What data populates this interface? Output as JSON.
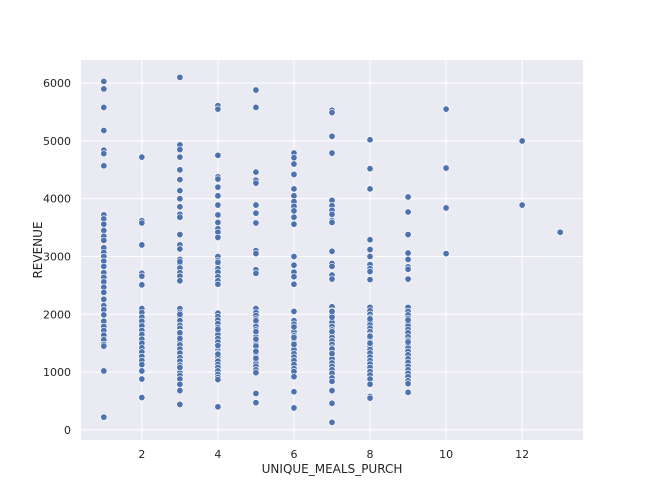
{
  "chart_data": {
    "type": "scatter",
    "title": "",
    "xlabel": "UNIQUE_MEALS_PURCH",
    "ylabel": "REVENUE",
    "xlim": [
      0.4,
      13.6
    ],
    "ylim": [
      -175,
      6400
    ],
    "xticks": [
      2,
      4,
      6,
      8,
      10,
      12
    ],
    "yticks": [
      0,
      1000,
      2000,
      3000,
      4000,
      5000,
      6000
    ],
    "grid": true,
    "style": "seaborn-darkgrid",
    "colors": {
      "background": "#eaeaf2",
      "grid": "#ffffff",
      "marker": "#4c72b0",
      "marker_edge": "#ffffff",
      "text": "#262626"
    },
    "x": [
      1,
      1,
      1,
      1,
      1,
      1,
      1,
      1,
      1,
      1,
      1,
      1,
      1,
      1,
      1,
      1,
      1,
      1,
      1,
      1,
      1,
      1,
      1,
      1,
      1,
      1,
      1,
      1,
      1,
      1,
      1,
      1,
      1,
      1,
      1,
      1,
      2,
      2,
      2,
      2,
      2,
      2,
      2,
      2,
      2,
      2,
      2,
      2,
      2,
      2,
      2,
      2,
      2,
      2,
      2,
      2,
      2,
      2,
      2,
      2,
      3,
      3,
      3,
      3,
      3,
      3,
      3,
      3,
      3,
      3,
      3,
      3,
      3,
      3,
      3,
      3,
      3,
      3,
      3,
      3,
      3,
      3,
      3,
      3,
      3,
      3,
      3,
      3,
      3,
      3,
      3,
      3,
      3,
      3,
      3,
      3,
      3,
      3,
      3,
      3,
      3,
      3,
      3,
      3,
      3,
      3,
      3,
      4,
      4,
      4,
      4,
      4,
      4,
      4,
      4,
      4,
      4,
      4,
      4,
      4,
      4,
      4,
      4,
      4,
      4,
      4,
      4,
      4,
      4,
      4,
      4,
      4,
      4,
      4,
      4,
      4,
      4,
      4,
      4,
      4,
      4,
      4,
      4,
      4,
      4,
      4,
      4,
      4,
      4,
      4,
      4,
      4,
      4,
      5,
      5,
      5,
      5,
      5,
      5,
      5,
      5,
      5,
      5,
      5,
      5,
      5,
      5,
      5,
      5,
      5,
      5,
      5,
      5,
      5,
      5,
      5,
      5,
      5,
      5,
      5,
      5,
      5,
      5,
      5,
      5,
      5,
      5,
      5,
      5,
      5,
      5,
      5,
      5,
      6,
      6,
      6,
      6,
      6,
      6,
      6,
      6,
      6,
      6,
      6,
      6,
      6,
      6,
      6,
      6,
      6,
      6,
      6,
      6,
      6,
      6,
      6,
      6,
      6,
      6,
      6,
      6,
      6,
      6,
      6,
      6,
      6,
      6,
      6,
      6,
      6,
      6,
      7,
      7,
      7,
      7,
      7,
      7,
      7,
      7,
      7,
      7,
      7,
      7,
      7,
      7,
      7,
      7,
      7,
      7,
      7,
      7,
      7,
      7,
      7,
      7,
      7,
      7,
      7,
      7,
      7,
      7,
      7,
      7,
      7,
      7,
      7,
      7,
      7,
      7,
      7,
      7,
      7,
      7,
      7,
      7,
      8,
      8,
      8,
      8,
      8,
      8,
      8,
      8,
      8,
      8,
      8,
      8,
      8,
      8,
      8,
      8,
      8,
      8,
      8,
      8,
      8,
      8,
      8,
      8,
      8,
      8,
      8,
      8,
      8,
      8,
      8,
      8,
      8,
      8,
      8,
      8,
      8,
      9,
      9,
      9,
      9,
      9,
      9,
      9,
      9,
      9,
      9,
      9,
      9,
      9,
      9,
      9,
      9,
      9,
      9,
      9,
      9,
      9,
      9,
      9,
      9,
      9,
      9,
      9,
      9,
      9,
      9,
      9,
      9,
      9,
      10,
      10,
      10,
      10,
      12,
      12,
      13
    ],
    "y": [
      6030,
      5900,
      5580,
      5180,
      4840,
      4780,
      4570,
      3720,
      3650,
      3560,
      3450,
      3350,
      3280,
      3150,
      3070,
      3000,
      2920,
      2830,
      2720,
      2640,
      2560,
      2470,
      2380,
      2260,
      2150,
      2080,
      1990,
      1880,
      1790,
      1720,
      1640,
      1560,
      1480,
      1450,
      1020,
      220,
      4720,
      3620,
      3580,
      3200,
      2710,
      2660,
      2510,
      2100,
      2030,
      1950,
      1880,
      1800,
      1720,
      1650,
      1570,
      1500,
      1420,
      1350,
      1270,
      1200,
      1130,
      880,
      560,
      1020,
      6100,
      4930,
      4850,
      4720,
      4500,
      4330,
      4140,
      4000,
      3860,
      3730,
      3680,
      3380,
      3200,
      3130,
      2950,
      2880,
      2800,
      2720,
      2660,
      2580,
      2100,
      2030,
      1960,
      1890,
      1810,
      1760,
      1690,
      1610,
      1540,
      1470,
      1400,
      1330,
      1250,
      1190,
      1120,
      1050,
      990,
      940,
      880,
      790,
      680,
      440,
      1680,
      2000,
      1580,
      1080,
      2910,
      5610,
      5550,
      4750,
      4380,
      4340,
      4200,
      4050,
      3890,
      3720,
      3590,
      3480,
      3420,
      3330,
      3000,
      2930,
      2870,
      2790,
      2730,
      2650,
      2580,
      2520,
      2020,
      1960,
      1900,
      1840,
      1770,
      1700,
      1650,
      1580,
      1520,
      1450,
      1380,
      1330,
      1260,
      1190,
      1130,
      1080,
      1020,
      960,
      910,
      870,
      400,
      2900,
      1740,
      1310,
      1460,
      5880,
      5580,
      4460,
      4320,
      4270,
      3890,
      3750,
      3580,
      3100,
      3050,
      2770,
      2710,
      2100,
      2030,
      1980,
      1920,
      1860,
      1790,
      1730,
      1670,
      1610,
      1540,
      1480,
      1420,
      1370,
      1310,
      1260,
      1200,
      1150,
      1100,
      1040,
      990,
      630,
      470,
      1890,
      1450,
      1700,
      1570,
      1360,
      1240,
      4790,
      4710,
      4600,
      4420,
      4170,
      4050,
      3950,
      3870,
      3790,
      3680,
      3560,
      3000,
      2850,
      2730,
      2650,
      2520,
      2050,
      1890,
      1830,
      1760,
      1700,
      1630,
      1570,
      1510,
      1450,
      1390,
      1320,
      1260,
      1200,
      1130,
      1060,
      1010,
      920,
      660,
      380,
      1600,
      1480,
      1780,
      5530,
      5490,
      5080,
      4790,
      3970,
      3880,
      3800,
      3730,
      3620,
      3590,
      3090,
      2880,
      2830,
      2680,
      2610,
      2130,
      2060,
      1990,
      1920,
      1860,
      1790,
      1730,
      1660,
      1600,
      1540,
      1480,
      1420,
      1360,
      1290,
      1230,
      1160,
      1100,
      1040,
      980,
      900,
      840,
      680,
      460,
      130,
      1950,
      1400,
      1320,
      2050,
      1700,
      5020,
      4520,
      4170,
      3290,
      3120,
      3000,
      2860,
      2790,
      2740,
      2600,
      2120,
      2060,
      2000,
      1940,
      1880,
      1820,
      1760,
      1700,
      1640,
      1580,
      1520,
      1450,
      1390,
      1330,
      1260,
      1200,
      1140,
      1080,
      1010,
      950,
      880,
      790,
      580,
      550,
      1500,
      1620,
      1920,
      4030,
      3770,
      3380,
      3060,
      2950,
      2820,
      2780,
      2610,
      2120,
      2050,
      1990,
      1930,
      1860,
      1800,
      1740,
      1680,
      1610,
      1550,
      1490,
      1420,
      1360,
      1300,
      1230,
      1170,
      1100,
      1040,
      980,
      920,
      850,
      800,
      650,
      1900,
      1520,
      5550,
      4530,
      3840,
      3050,
      5000,
      3890,
      3420
    ]
  }
}
